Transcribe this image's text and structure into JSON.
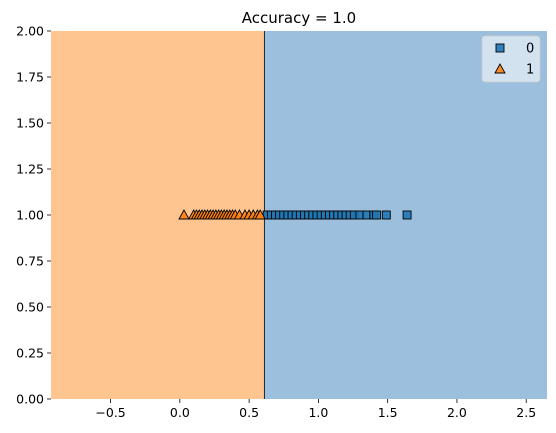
{
  "chart_data": {
    "type": "scatter",
    "title": "Accuracy = 1.0",
    "xlabel": "",
    "ylabel": "",
    "xlim": [
      -0.93,
      2.65
    ],
    "ylim": [
      0.0,
      2.0
    ],
    "xticks": [
      "−0.5",
      "0.0",
      "0.5",
      "1.0",
      "1.5",
      "2.0",
      "2.5"
    ],
    "xtick_values": [
      -0.5,
      0.0,
      0.5,
      1.0,
      1.5,
      2.0,
      2.5
    ],
    "yticks": [
      "0.00",
      "0.25",
      "0.50",
      "0.75",
      "1.00",
      "1.25",
      "1.50",
      "1.75",
      "2.00"
    ],
    "ytick_values": [
      0.0,
      0.25,
      0.5,
      0.75,
      1.0,
      1.25,
      1.5,
      1.75,
      2.0
    ],
    "decision_boundary_x": 0.61,
    "regions": [
      {
        "class": "1",
        "x_from": -0.93,
        "x_to": 0.61,
        "color": "#ffc591"
      },
      {
        "class": "0",
        "x_from": 0.61,
        "x_to": 2.65,
        "color": "#9bbfdc"
      }
    ],
    "series": [
      {
        "name": "0",
        "marker": "square",
        "color": "#1f77b4",
        "x": [
          0.63,
          0.66,
          0.69,
          0.72,
          0.75,
          0.78,
          0.81,
          0.84,
          0.87,
          0.9,
          0.93,
          0.96,
          0.99,
          1.02,
          1.05,
          1.08,
          1.11,
          1.14,
          1.17,
          1.2,
          1.23,
          1.26,
          1.3,
          1.35,
          1.4,
          1.42,
          1.49,
          1.64
        ],
        "y": [
          1.0,
          1.0,
          1.0,
          1.0,
          1.0,
          1.0,
          1.0,
          1.0,
          1.0,
          1.0,
          1.0,
          1.0,
          1.0,
          1.0,
          1.0,
          1.0,
          1.0,
          1.0,
          1.0,
          1.0,
          1.0,
          1.0,
          1.0,
          1.0,
          1.0,
          1.0,
          1.0,
          1.0
        ]
      },
      {
        "name": "1",
        "marker": "triangle",
        "color": "#ff7f0e",
        "x": [
          0.03,
          0.1,
          0.12,
          0.14,
          0.16,
          0.18,
          0.2,
          0.22,
          0.24,
          0.26,
          0.28,
          0.3,
          0.32,
          0.34,
          0.36,
          0.38,
          0.4,
          0.43,
          0.47,
          0.5,
          0.53,
          0.56,
          0.58
        ],
        "y": [
          1.0,
          1.0,
          1.0,
          1.0,
          1.0,
          1.0,
          1.0,
          1.0,
          1.0,
          1.0,
          1.0,
          1.0,
          1.0,
          1.0,
          1.0,
          1.0,
          1.0,
          1.0,
          1.0,
          1.0,
          1.0,
          1.0,
          1.0
        ]
      }
    ],
    "legend": {
      "placement": "top-right",
      "entries": [
        "0",
        "1"
      ]
    }
  }
}
